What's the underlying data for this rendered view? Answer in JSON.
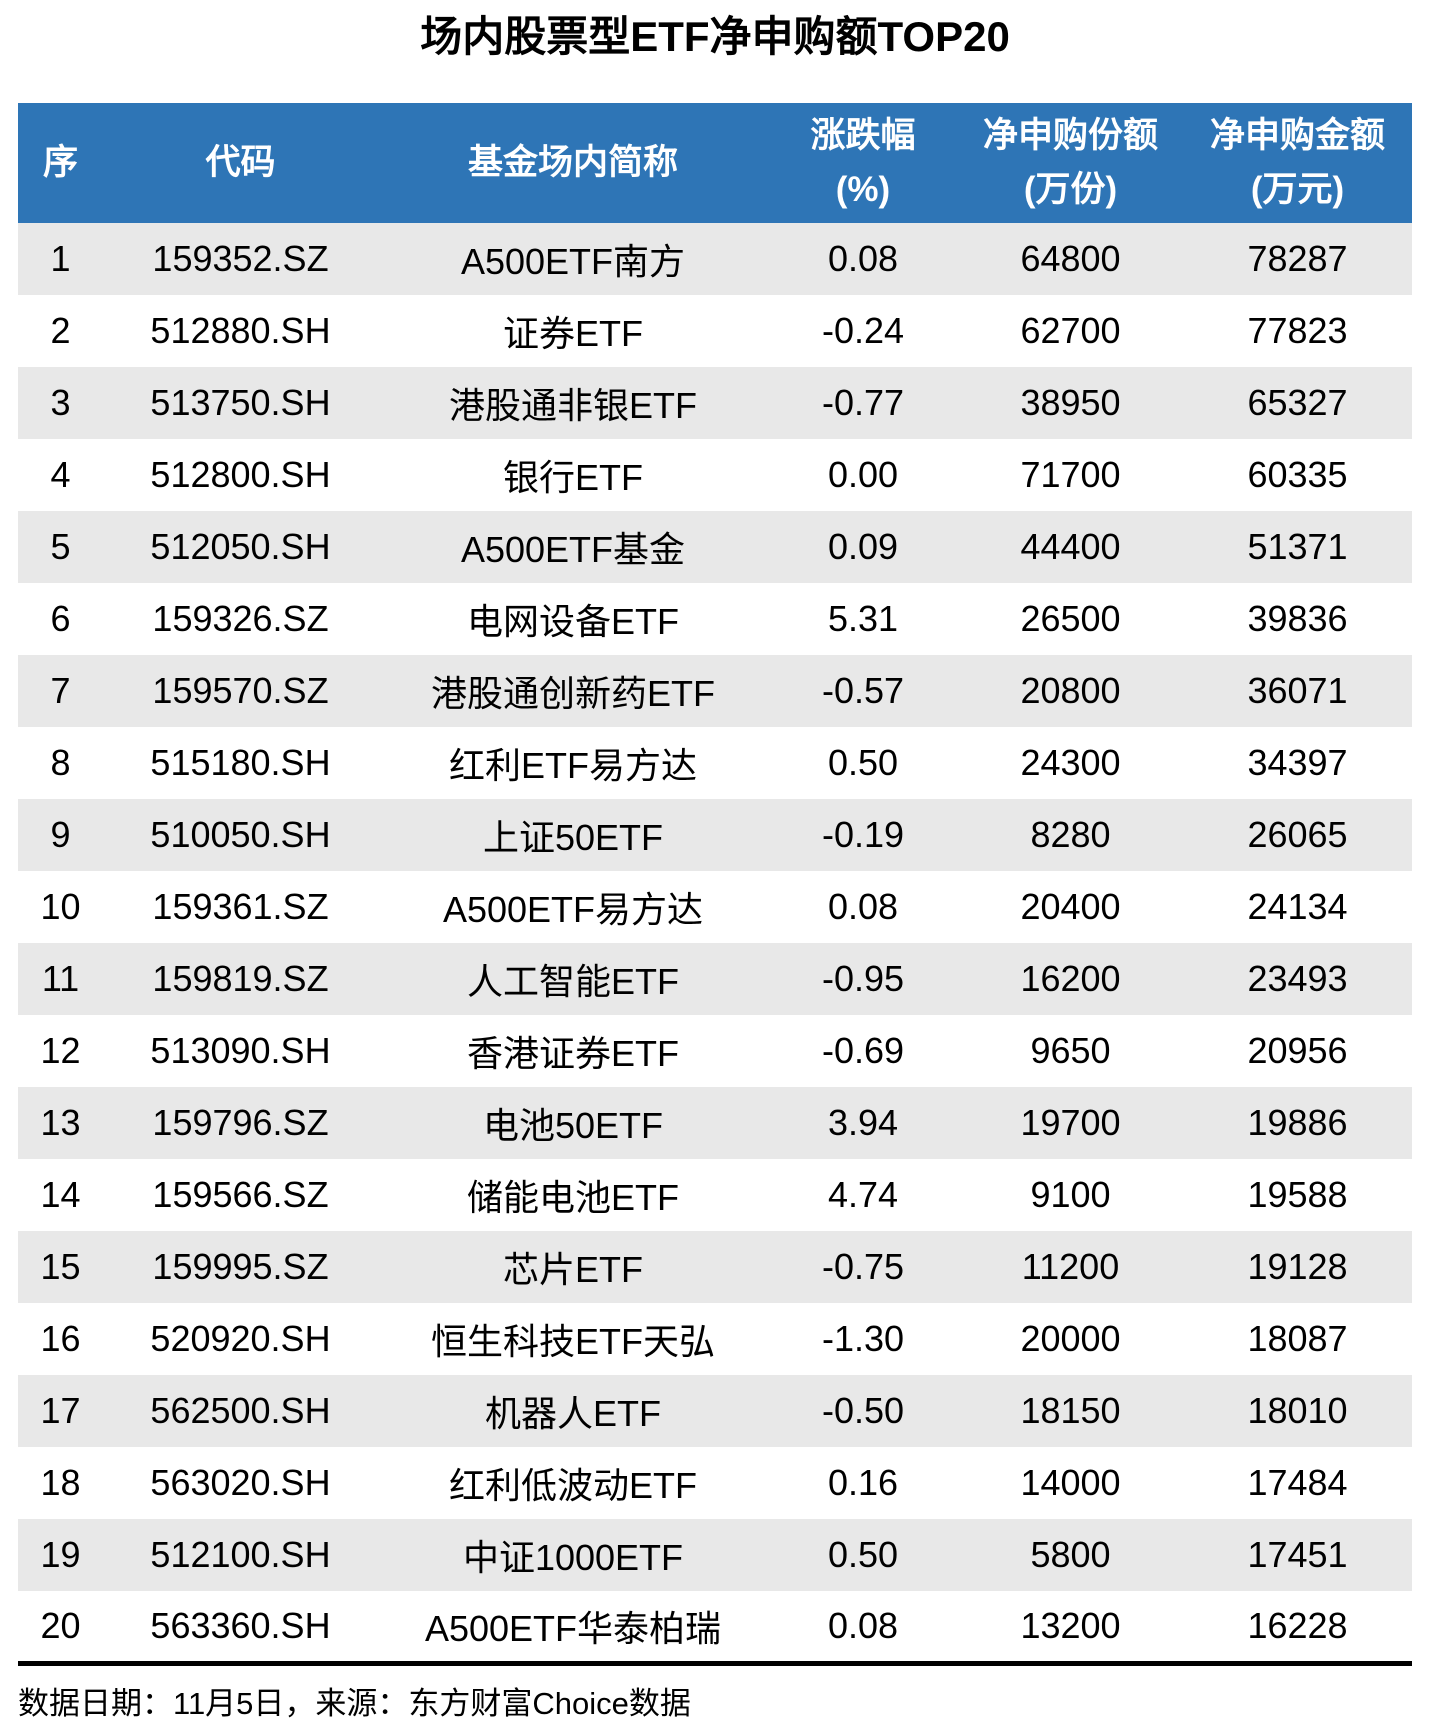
{
  "page_title": "场内股票型ETF净申购额TOP20",
  "chart_data": {
    "type": "table",
    "title": "场内股票型ETF净申购额TOP20",
    "columns": [
      "序",
      "代码",
      "基金场内简称",
      "涨跌幅(%)",
      "净申购份额(万份)",
      "净申购金额(万元)"
    ],
    "rows": [
      [
        "1",
        "159352.SZ",
        "A500ETF南方",
        "0.08",
        "64800",
        "78287"
      ],
      [
        "2",
        "512880.SH",
        "证券ETF",
        "-0.24",
        "62700",
        "77823"
      ],
      [
        "3",
        "513750.SH",
        "港股通非银ETF",
        "-0.77",
        "38950",
        "65327"
      ],
      [
        "4",
        "512800.SH",
        "银行ETF",
        "0.00",
        "71700",
        "60335"
      ],
      [
        "5",
        "512050.SH",
        "A500ETF基金",
        "0.09",
        "44400",
        "51371"
      ],
      [
        "6",
        "159326.SZ",
        "电网设备ETF",
        "5.31",
        "26500",
        "39836"
      ],
      [
        "7",
        "159570.SZ",
        "港股通创新药ETF",
        "-0.57",
        "20800",
        "36071"
      ],
      [
        "8",
        "515180.SH",
        "红利ETF易方达",
        "0.50",
        "24300",
        "34397"
      ],
      [
        "9",
        "510050.SH",
        "上证50ETF",
        "-0.19",
        "8280",
        "26065"
      ],
      [
        "10",
        "159361.SZ",
        "A500ETF易方达",
        "0.08",
        "20400",
        "24134"
      ],
      [
        "11",
        "159819.SZ",
        "人工智能ETF",
        "-0.95",
        "16200",
        "23493"
      ],
      [
        "12",
        "513090.SH",
        "香港证券ETF",
        "-0.69",
        "9650",
        "20956"
      ],
      [
        "13",
        "159796.SZ",
        "电池50ETF",
        "3.94",
        "19700",
        "19886"
      ],
      [
        "14",
        "159566.SZ",
        "储能电池ETF",
        "4.74",
        "9100",
        "19588"
      ],
      [
        "15",
        "159995.SZ",
        "芯片ETF",
        "-0.75",
        "11200",
        "19128"
      ],
      [
        "16",
        "520920.SH",
        "恒生科技ETF天弘",
        "-1.30",
        "20000",
        "18087"
      ],
      [
        "17",
        "562500.SH",
        "机器人ETF",
        "-0.50",
        "18150",
        "18010"
      ],
      [
        "18",
        "563020.SH",
        "红利低波动ETF",
        "0.16",
        "14000",
        "17484"
      ],
      [
        "19",
        "512100.SH",
        "中证1000ETF",
        "0.50",
        "5800",
        "17451"
      ],
      [
        "20",
        "563360.SH",
        "A500ETF华泰柏瑞",
        "0.08",
        "13200",
        "16228"
      ]
    ],
    "source_note": "数据日期：11月5日，来源：东方财富Choice数据"
  },
  "header": {
    "rank": "序",
    "code": "代码",
    "name": "基金场内简称",
    "change_label": "涨跌幅",
    "change_unit": "(%)",
    "shares_label": "净申购份额",
    "shares_unit": "(万份)",
    "amount_label": "净申购金额",
    "amount_unit": "(万元)"
  },
  "footer": {
    "note": "数据日期：11月5日，来源：东方财富Choice数据"
  },
  "colors": {
    "header_bg": "#2E75B6",
    "header_text": "#FFFFFF",
    "row_stripe": "#E8E8E8",
    "body_text": "#000000",
    "rule": "#000000"
  }
}
